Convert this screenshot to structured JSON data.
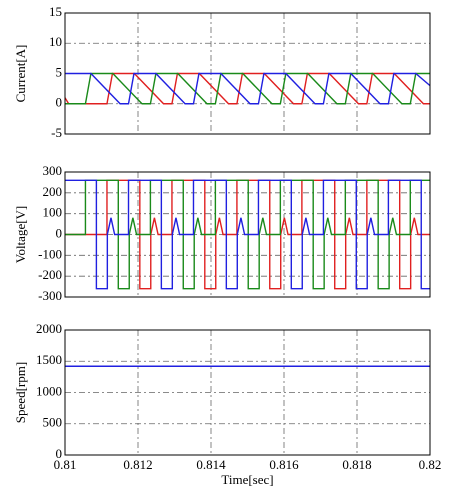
{
  "chart_data": [
    {
      "type": "line",
      "ylabel": "Current[A]",
      "ylim": [
        -5,
        15
      ],
      "yticks": [
        -5,
        0,
        5,
        10,
        15
      ],
      "xlim": [
        0.81,
        0.82
      ],
      "xticks": [
        0.81,
        0.812,
        0.814,
        0.816,
        0.818,
        0.82
      ],
      "grid": true,
      "series": [
        {
          "color": "#e02020",
          "x": [
            0.81,
            0.8101,
            0.81115,
            0.8113,
            0.8119,
            0.8127,
            0.81293,
            0.81308,
            0.81368,
            0.81448,
            0.81471,
            0.81486,
            0.81546,
            0.81626,
            0.81649,
            0.81664,
            0.81724,
            0.81804,
            0.81827,
            0.81842,
            0.81902,
            0.81982,
            0.82
          ],
          "values": [
            1,
            0,
            0,
            5,
            5,
            0,
            0,
            5,
            5,
            0,
            0,
            5,
            5,
            0,
            0,
            5,
            5,
            0,
            0,
            5,
            5,
            0,
            0
          ]
        },
        {
          "color": "#1a8a1a",
          "x": [
            0.81,
            0.81056,
            0.81071,
            0.81131,
            0.81211,
            0.81234,
            0.81249,
            0.81309,
            0.81389,
            0.81412,
            0.81427,
            0.81487,
            0.81567,
            0.8159,
            0.81605,
            0.81665,
            0.81745,
            0.81768,
            0.81783,
            0.81843,
            0.81923,
            0.81946,
            0.81961,
            0.82
          ],
          "values": [
            0,
            0,
            5,
            5,
            0,
            0,
            5,
            5,
            0,
            0,
            5,
            5,
            0,
            0,
            5,
            5,
            0,
            0,
            5,
            5,
            0,
            0,
            5,
            5
          ]
        },
        {
          "color": "#2020e0",
          "x": [
            0.81,
            0.81071,
            0.81151,
            0.81174,
            0.81189,
            0.81249,
            0.81329,
            0.81352,
            0.81367,
            0.81427,
            0.81507,
            0.8153,
            0.81545,
            0.81605,
            0.81685,
            0.81708,
            0.81723,
            0.81783,
            0.81863,
            0.81886,
            0.81901,
            0.81961,
            0.82
          ],
          "values": [
            5,
            5,
            0,
            0,
            5,
            5,
            0,
            0,
            5,
            5,
            0,
            0,
            5,
            5,
            0,
            0,
            5,
            5,
            0,
            0,
            5,
            5,
            3
          ]
        }
      ]
    },
    {
      "type": "line",
      "ylabel": "Voltage[V]",
      "ylim": [
        -300,
        300
      ],
      "yticks": [
        -300,
        -200,
        -100,
        0,
        100,
        200,
        300
      ],
      "xlim": [
        0.81,
        0.82
      ],
      "xticks": [
        0.81,
        0.812,
        0.814,
        0.816,
        0.818,
        0.82
      ],
      "grid": true,
      "series": [
        {
          "color": "#e02020",
          "x": [
            0.81,
            0.81115,
            0.81115,
            0.81205,
            0.81205,
            0.81235,
            0.81235,
            0.81245,
            0.81255,
            0.81293,
            0.81293,
            0.81383,
            0.81383,
            0.81413,
            0.81413,
            0.81423,
            0.81433,
            0.81471,
            0.81471,
            0.81561,
            0.81561,
            0.81591,
            0.81591,
            0.81601,
            0.81611,
            0.81649,
            0.81649,
            0.81739,
            0.81739,
            0.81769,
            0.81769,
            0.81779,
            0.81789,
            0.81827,
            0.81827,
            0.81917,
            0.81917,
            0.81947,
            0.81947,
            0.81957,
            0.81967,
            0.82
          ],
          "values": [
            0,
            0,
            260,
            260,
            -260,
            -260,
            0,
            80,
            0,
            0,
            260,
            260,
            -260,
            -260,
            0,
            80,
            0,
            0,
            260,
            260,
            -260,
            -260,
            0,
            80,
            0,
            0,
            260,
            260,
            -260,
            -260,
            0,
            80,
            0,
            0,
            260,
            260,
            -260,
            -260,
            0,
            80,
            0,
            0
          ]
        },
        {
          "color": "#1a8a1a",
          "x": [
            0.81,
            0.81056,
            0.81056,
            0.81146,
            0.81146,
            0.81176,
            0.81176,
            0.81186,
            0.81196,
            0.81234,
            0.81234,
            0.81324,
            0.81324,
            0.81354,
            0.81354,
            0.81364,
            0.81374,
            0.81412,
            0.81412,
            0.81502,
            0.81502,
            0.81532,
            0.81532,
            0.81542,
            0.81552,
            0.8159,
            0.8159,
            0.8168,
            0.8168,
            0.8171,
            0.8171,
            0.8172,
            0.8173,
            0.81768,
            0.81768,
            0.81858,
            0.81858,
            0.81888,
            0.81888,
            0.81898,
            0.81908,
            0.81946,
            0.81946,
            0.82
          ],
          "values": [
            0,
            0,
            260,
            260,
            -260,
            -260,
            0,
            80,
            0,
            0,
            260,
            260,
            -260,
            -260,
            0,
            80,
            0,
            0,
            260,
            260,
            -260,
            -260,
            0,
            80,
            0,
            0,
            260,
            260,
            -260,
            -260,
            0,
            80,
            0,
            0,
            260,
            260,
            -260,
            -260,
            0,
            80,
            0,
            0,
            260,
            260
          ]
        },
        {
          "color": "#2020e0",
          "x": [
            0.81,
            0.81086,
            0.81086,
            0.81116,
            0.81116,
            0.81126,
            0.81136,
            0.81174,
            0.81174,
            0.81264,
            0.81264,
            0.81294,
            0.81294,
            0.81304,
            0.81314,
            0.81352,
            0.81352,
            0.81442,
            0.81442,
            0.81472,
            0.81472,
            0.81482,
            0.81492,
            0.8153,
            0.8153,
            0.8162,
            0.8162,
            0.8165,
            0.8165,
            0.8166,
            0.8167,
            0.81708,
            0.81708,
            0.81798,
            0.81798,
            0.81828,
            0.81828,
            0.81838,
            0.81848,
            0.81886,
            0.81886,
            0.81976,
            0.81976,
            0.82
          ],
          "values": [
            260,
            260,
            -260,
            -260,
            0,
            80,
            0,
            0,
            260,
            260,
            -260,
            -260,
            0,
            80,
            0,
            0,
            260,
            260,
            -260,
            -260,
            0,
            80,
            0,
            0,
            260,
            260,
            -260,
            -260,
            0,
            80,
            0,
            0,
            260,
            260,
            -260,
            -260,
            0,
            80,
            0,
            0,
            260,
            260,
            -260,
            -260
          ]
        }
      ]
    },
    {
      "type": "line",
      "ylabel": "Speed[rpm]",
      "xlabel": "Time[sec]",
      "ylim": [
        0,
        2000
      ],
      "yticks": [
        0,
        500,
        1000,
        1500,
        2000
      ],
      "xlim": [
        0.81,
        0.82
      ],
      "xticks": [
        0.81,
        0.812,
        0.814,
        0.816,
        0.818,
        0.82
      ],
      "grid": true,
      "series": [
        {
          "color": "#2020e0",
          "x": [
            0.81,
            0.82
          ],
          "values": [
            1420,
            1420
          ]
        }
      ]
    }
  ]
}
